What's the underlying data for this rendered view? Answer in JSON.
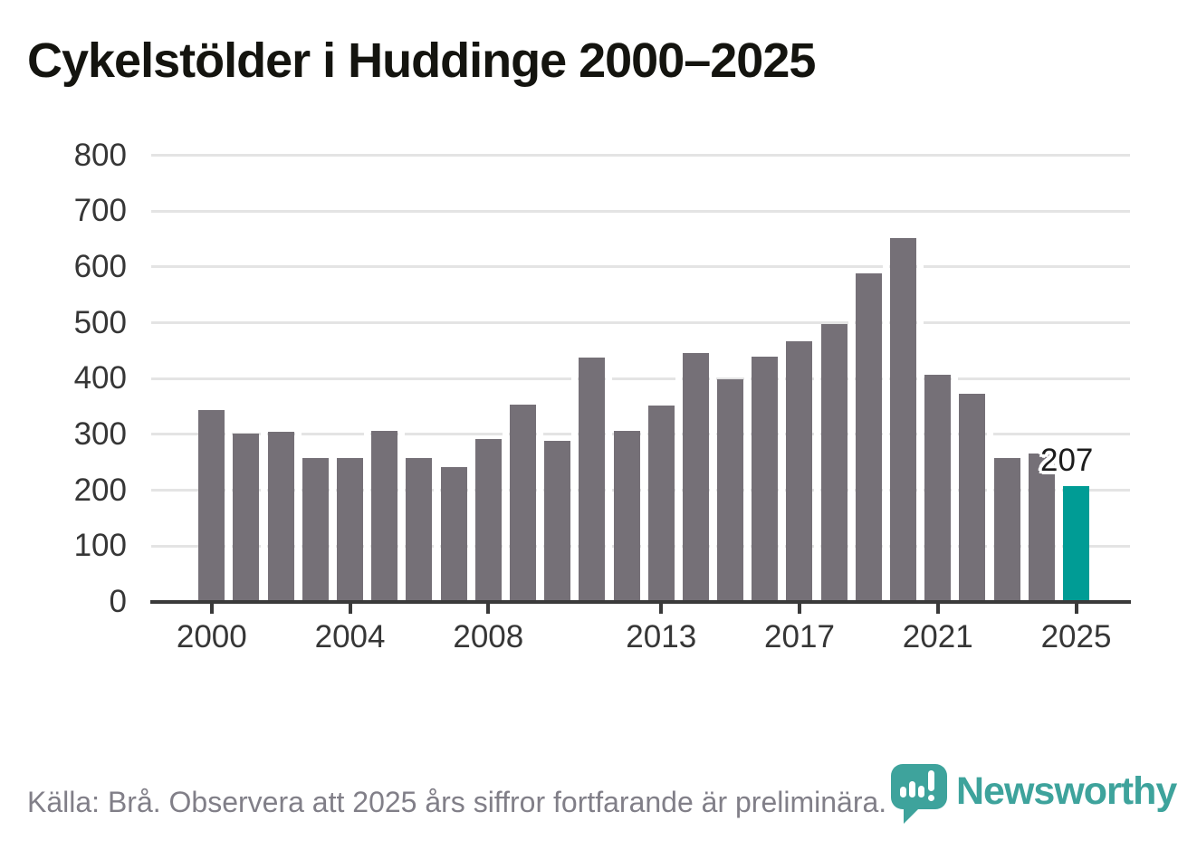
{
  "title": "Cykelstölder i Huddinge 2000–2025",
  "chart_data": {
    "type": "bar",
    "title": "Cykelstölder i Huddinge 2000–2025",
    "categories": [
      2000,
      2001,
      2002,
      2003,
      2004,
      2005,
      2006,
      2007,
      2008,
      2009,
      2010,
      2011,
      2012,
      2013,
      2014,
      2015,
      2016,
      2017,
      2018,
      2019,
      2020,
      2021,
      2022,
      2023,
      2024,
      2025
    ],
    "values": [
      344,
      302,
      304,
      257,
      257,
      306,
      257,
      242,
      291,
      354,
      288,
      437,
      307,
      351,
      446,
      398,
      439,
      467,
      497,
      589,
      652,
      407,
      373,
      258,
      266,
      207
    ],
    "xlabel": "",
    "ylabel": "",
    "ylim": [
      0,
      800
    ],
    "ytick_step": 100,
    "yticks": [
      0,
      100,
      200,
      300,
      400,
      500,
      600,
      700,
      800
    ],
    "xticks": [
      2000,
      2004,
      2008,
      2013,
      2017,
      2021,
      2025
    ],
    "grid": true,
    "legend": false,
    "bar_color": "#757077",
    "highlight": {
      "category": 2025,
      "color": "#009C95",
      "data_label": "207"
    }
  },
  "footer": {
    "source_note": "Källa: Brå. Observera att 2025 års siffror fortfarande är preliminära."
  },
  "branding": {
    "wordmark": "Newsworthy",
    "icon": "newsworthy-speech-bubble-barchart-icon",
    "color": "#3EA39C"
  }
}
